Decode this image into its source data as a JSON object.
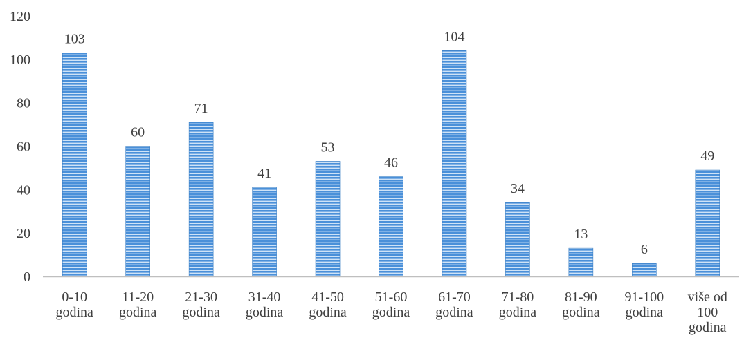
{
  "chart_data": {
    "type": "bar",
    "categories": [
      [
        "0-10",
        "godina"
      ],
      [
        "11-20",
        "godina"
      ],
      [
        "21-30",
        "godina"
      ],
      [
        "31-40",
        "godina"
      ],
      [
        "41-50",
        "godina"
      ],
      [
        "51-60",
        "godina"
      ],
      [
        "61-70",
        "godina"
      ],
      [
        "71-80",
        "godina"
      ],
      [
        "81-90",
        "godina"
      ],
      [
        "91-100",
        "godina"
      ],
      [
        "više od",
        "100",
        "godina"
      ]
    ],
    "values": [
      103,
      60,
      71,
      41,
      53,
      46,
      104,
      34,
      13,
      6,
      49
    ],
    "ylim": [
      0,
      120
    ],
    "yticks": [
      0,
      20,
      40,
      60,
      80,
      100,
      120
    ],
    "grid": false,
    "data_labels": true,
    "bar_color": "#4a90d9",
    "bar_stripe_color": "#ffffff",
    "axis_color": "#bfbfbf",
    "text_color": "#404040"
  }
}
